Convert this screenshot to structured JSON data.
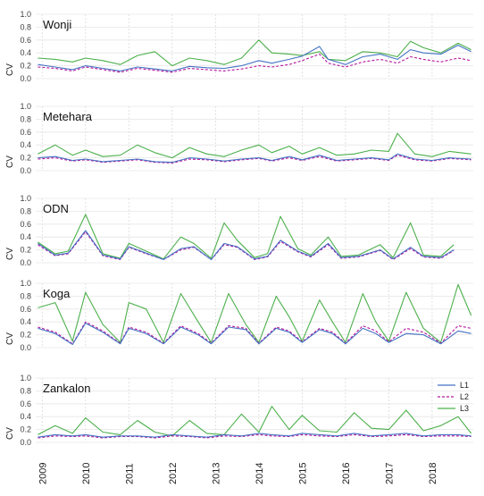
{
  "chart_data": {
    "type": "line",
    "x_ticks": [
      "2009",
      "2010",
      "2011",
      "2012",
      "2013",
      "2014",
      "2015",
      "2016",
      "2017",
      "2018"
    ],
    "x_range": [
      2008.85,
      2018.95
    ],
    "y_ticks": [
      "0.0",
      "0.2",
      "0.4",
      "0.6",
      "0.8",
      "1.0"
    ],
    "ylim": [
      0,
      1.0
    ],
    "ylabel": "CV",
    "grid": true,
    "legend_position": "bottom-right of last panel",
    "series_styles": [
      {
        "name": "L1",
        "color": "#4472C4",
        "dash": "solid"
      },
      {
        "name": "L2",
        "color": "#B5179E",
        "dash": "dashed"
      },
      {
        "name": "L3",
        "color": "#4CB04C",
        "dash": "solid"
      }
    ],
    "panels": [
      {
        "title": "Wonji",
        "x": [
          2008.9,
          2009.3,
          2009.7,
          2010.0,
          2010.4,
          2010.8,
          2011.2,
          2011.6,
          2012.0,
          2012.4,
          2012.8,
          2013.2,
          2013.6,
          2014.0,
          2014.3,
          2014.7,
          2015.0,
          2015.4,
          2015.6,
          2016.0,
          2016.4,
          2016.8,
          2017.2,
          2017.5,
          2017.8,
          2018.2,
          2018.6,
          2018.9
        ],
        "series": [
          {
            "name": "L1",
            "values": [
              0.22,
              0.18,
              0.14,
              0.2,
              0.16,
              0.12,
              0.18,
              0.15,
              0.12,
              0.19,
              0.17,
              0.16,
              0.2,
              0.28,
              0.24,
              0.3,
              0.35,
              0.5,
              0.3,
              0.22,
              0.34,
              0.38,
              0.3,
              0.45,
              0.4,
              0.38,
              0.52,
              0.42
            ]
          },
          {
            "name": "L2",
            "values": [
              0.18,
              0.16,
              0.12,
              0.18,
              0.14,
              0.1,
              0.16,
              0.13,
              0.1,
              0.16,
              0.14,
              0.12,
              0.15,
              0.2,
              0.18,
              0.22,
              0.28,
              0.38,
              0.24,
              0.18,
              0.26,
              0.3,
              0.24,
              0.34,
              0.3,
              0.26,
              0.32,
              0.28
            ]
          },
          {
            "name": "L3",
            "values": [
              0.32,
              0.3,
              0.26,
              0.32,
              0.28,
              0.22,
              0.36,
              0.42,
              0.2,
              0.32,
              0.28,
              0.22,
              0.32,
              0.6,
              0.4,
              0.38,
              0.36,
              0.42,
              0.3,
              0.28,
              0.42,
              0.4,
              0.34,
              0.58,
              0.48,
              0.4,
              0.55,
              0.45
            ]
          }
        ]
      },
      {
        "title": "Metehara",
        "x": [
          2008.9,
          2009.3,
          2009.7,
          2010.0,
          2010.4,
          2010.8,
          2011.2,
          2011.6,
          2012.0,
          2012.4,
          2012.8,
          2013.2,
          2013.6,
          2014.0,
          2014.3,
          2014.7,
          2015.0,
          2015.4,
          2015.8,
          2016.2,
          2016.6,
          2017.0,
          2017.2,
          2017.6,
          2018.0,
          2018.4,
          2018.9
        ],
        "series": [
          {
            "name": "L1",
            "values": [
              0.2,
              0.22,
              0.16,
              0.18,
              0.14,
              0.16,
              0.18,
              0.14,
              0.13,
              0.2,
              0.18,
              0.15,
              0.18,
              0.2,
              0.16,
              0.22,
              0.17,
              0.24,
              0.16,
              0.18,
              0.2,
              0.17,
              0.26,
              0.18,
              0.16,
              0.2,
              0.18
            ]
          },
          {
            "name": "L2",
            "values": [
              0.18,
              0.2,
              0.15,
              0.17,
              0.13,
              0.15,
              0.17,
              0.13,
              0.12,
              0.18,
              0.17,
              0.14,
              0.17,
              0.19,
              0.15,
              0.2,
              0.16,
              0.22,
              0.15,
              0.17,
              0.19,
              0.16,
              0.24,
              0.17,
              0.15,
              0.19,
              0.17
            ]
          },
          {
            "name": "L3",
            "values": [
              0.26,
              0.4,
              0.24,
              0.32,
              0.22,
              0.24,
              0.4,
              0.28,
              0.2,
              0.36,
              0.26,
              0.22,
              0.32,
              0.4,
              0.28,
              0.38,
              0.26,
              0.36,
              0.24,
              0.26,
              0.32,
              0.3,
              0.58,
              0.26,
              0.22,
              0.3,
              0.26
            ]
          }
        ]
      },
      {
        "title": "ODN",
        "x": [
          2008.9,
          2009.3,
          2009.6,
          2010.0,
          2010.4,
          2010.8,
          2011.0,
          2011.4,
          2011.8,
          2012.2,
          2012.5,
          2012.9,
          2013.2,
          2013.5,
          2013.9,
          2014.2,
          2014.5,
          2014.9,
          2015.2,
          2015.6,
          2015.9,
          2016.3,
          2016.8,
          2017.1,
          2017.5,
          2017.8,
          2018.2,
          2018.5
        ],
        "series": [
          {
            "name": "L1",
            "values": [
              0.3,
              0.12,
              0.15,
              0.5,
              0.12,
              0.06,
              0.25,
              0.15,
              0.05,
              0.22,
              0.25,
              0.05,
              0.3,
              0.25,
              0.06,
              0.1,
              0.35,
              0.18,
              0.1,
              0.3,
              0.08,
              0.1,
              0.2,
              0.06,
              0.24,
              0.1,
              0.08,
              0.2
            ]
          },
          {
            "name": "L2",
            "values": [
              0.28,
              0.11,
              0.14,
              0.48,
              0.11,
              0.05,
              0.24,
              0.14,
              0.05,
              0.2,
              0.24,
              0.05,
              0.28,
              0.24,
              0.05,
              0.09,
              0.33,
              0.17,
              0.09,
              0.28,
              0.07,
              0.09,
              0.19,
              0.05,
              0.22,
              0.09,
              0.07,
              0.19
            ]
          },
          {
            "name": "L3",
            "values": [
              0.32,
              0.14,
              0.18,
              0.75,
              0.14,
              0.07,
              0.3,
              0.18,
              0.06,
              0.4,
              0.3,
              0.07,
              0.62,
              0.35,
              0.08,
              0.14,
              0.72,
              0.22,
              0.12,
              0.4,
              0.1,
              0.12,
              0.28,
              0.08,
              0.62,
              0.12,
              0.1,
              0.28
            ]
          }
        ]
      },
      {
        "title": "Koga",
        "x": [
          2008.9,
          2009.3,
          2009.7,
          2010.0,
          2010.4,
          2010.8,
          2011.0,
          2011.4,
          2011.8,
          2012.2,
          2012.6,
          2012.9,
          2013.3,
          2013.7,
          2014.0,
          2014.4,
          2014.7,
          2015.0,
          2015.4,
          2015.7,
          2016.0,
          2016.4,
          2016.7,
          2017.0,
          2017.4,
          2017.8,
          2018.2,
          2018.6,
          2018.9
        ],
        "series": [
          {
            "name": "L1",
            "values": [
              0.3,
              0.22,
              0.05,
              0.38,
              0.24,
              0.06,
              0.3,
              0.22,
              0.06,
              0.32,
              0.2,
              0.06,
              0.32,
              0.28,
              0.06,
              0.3,
              0.24,
              0.08,
              0.28,
              0.22,
              0.06,
              0.3,
              0.22,
              0.08,
              0.22,
              0.2,
              0.06,
              0.26,
              0.22
            ]
          },
          {
            "name": "L2",
            "values": [
              0.32,
              0.24,
              0.06,
              0.4,
              0.26,
              0.07,
              0.32,
              0.24,
              0.07,
              0.34,
              0.22,
              0.07,
              0.34,
              0.3,
              0.07,
              0.32,
              0.26,
              0.09,
              0.3,
              0.24,
              0.07,
              0.34,
              0.26,
              0.09,
              0.3,
              0.24,
              0.07,
              0.34,
              0.3
            ]
          },
          {
            "name": "L3",
            "values": [
              0.62,
              0.7,
              0.1,
              0.86,
              0.36,
              0.08,
              0.7,
              0.6,
              0.08,
              0.84,
              0.4,
              0.08,
              0.84,
              0.36,
              0.08,
              0.8,
              0.48,
              0.1,
              0.74,
              0.4,
              0.08,
              0.84,
              0.4,
              0.1,
              0.86,
              0.3,
              0.08,
              0.98,
              0.5
            ]
          }
        ]
      },
      {
        "title": "Zankalon",
        "x": [
          2008.9,
          2009.3,
          2009.7,
          2010.0,
          2010.4,
          2010.8,
          2011.2,
          2011.6,
          2012.0,
          2012.4,
          2012.8,
          2013.2,
          2013.6,
          2014.0,
          2014.3,
          2014.7,
          2015.0,
          2015.4,
          2015.8,
          2016.2,
          2016.6,
          2017.0,
          2017.4,
          2017.8,
          2018.2,
          2018.6,
          2018.9
        ],
        "series": [
          {
            "name": "L1",
            "values": [
              0.08,
              0.12,
              0.1,
              0.12,
              0.08,
              0.1,
              0.1,
              0.08,
              0.12,
              0.1,
              0.08,
              0.12,
              0.1,
              0.14,
              0.12,
              0.1,
              0.14,
              0.12,
              0.1,
              0.14,
              0.1,
              0.12,
              0.14,
              0.1,
              0.12,
              0.12,
              0.1
            ]
          },
          {
            "name": "L2",
            "values": [
              0.07,
              0.1,
              0.09,
              0.1,
              0.07,
              0.09,
              0.09,
              0.07,
              0.1,
              0.09,
              0.07,
              0.1,
              0.09,
              0.12,
              0.1,
              0.09,
              0.12,
              0.1,
              0.09,
              0.12,
              0.09,
              0.1,
              0.12,
              0.09,
              0.1,
              0.1,
              0.09
            ]
          },
          {
            "name": "L3",
            "values": [
              0.12,
              0.26,
              0.14,
              0.38,
              0.16,
              0.12,
              0.34,
              0.16,
              0.1,
              0.34,
              0.14,
              0.12,
              0.44,
              0.16,
              0.56,
              0.2,
              0.42,
              0.18,
              0.16,
              0.46,
              0.22,
              0.2,
              0.5,
              0.18,
              0.26,
              0.4,
              0.14
            ]
          }
        ]
      }
    ]
  }
}
